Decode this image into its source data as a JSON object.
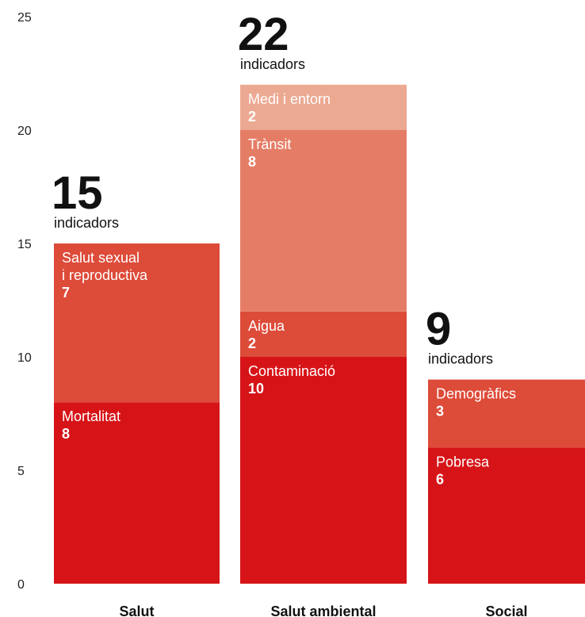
{
  "chart_data": {
    "type": "bar",
    "stacked": true,
    "ylim": [
      0,
      25
    ],
    "yticks": [
      "0",
      "5",
      "10",
      "15",
      "20",
      "25"
    ],
    "grid": false,
    "unit_label": "indicadors",
    "bars": [
      {
        "category": "Salut",
        "total": "15",
        "segments": [
          {
            "lines": [
              "Mortalitat"
            ],
            "value": 8,
            "color": "#d61418"
          },
          {
            "lines": [
              "Salut sexual",
              "i reproductiva"
            ],
            "value": 7,
            "color": "#dd4b39"
          }
        ]
      },
      {
        "category": "Salut ambiental",
        "total": "22",
        "segments": [
          {
            "lines": [
              "Contaminació"
            ],
            "value": 10,
            "color": "#d61418"
          },
          {
            "lines": [
              "Aigua"
            ],
            "value": 2,
            "color": "#dd4b39"
          },
          {
            "lines": [
              "Trànsit"
            ],
            "value": 8,
            "color": "#e57d66"
          },
          {
            "lines": [
              "Medi i entorn"
            ],
            "value": 2,
            "color": "#eca992"
          }
        ]
      },
      {
        "category": "Social",
        "total": "9",
        "segments": [
          {
            "lines": [
              "Pobresa"
            ],
            "value": 6,
            "color": "#d61418"
          },
          {
            "lines": [
              "Demogràfics"
            ],
            "value": 3,
            "color": "#dd4b39"
          }
        ]
      }
    ]
  }
}
